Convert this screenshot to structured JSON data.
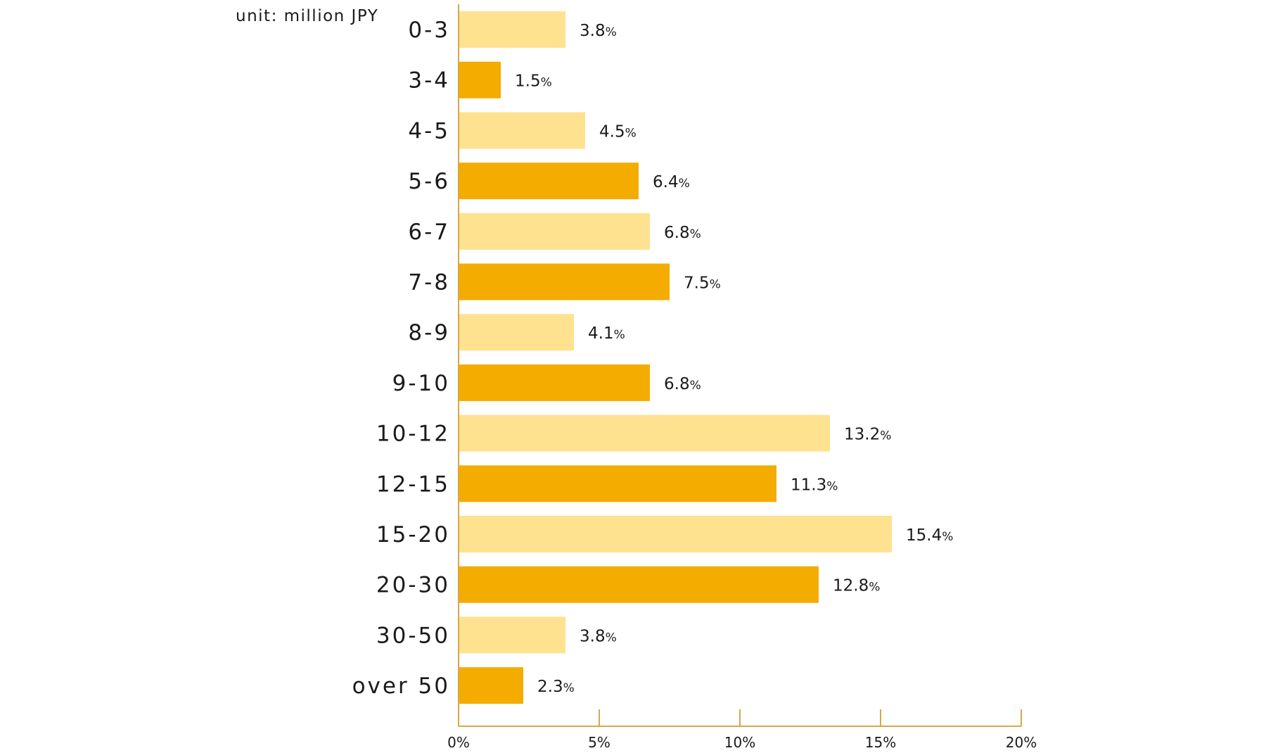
{
  "chart_data": {
    "type": "bar",
    "orientation": "horizontal",
    "unit_note": "unit: million JPY",
    "categories": [
      "0-3",
      "3-4",
      "4-5",
      "5-6",
      "6-7",
      "7-8",
      "8-9",
      "9-10",
      "10-12",
      "12-15",
      "15-20",
      "20-30",
      "30-50",
      "over 50"
    ],
    "values": [
      3.8,
      1.5,
      4.5,
      6.4,
      6.8,
      7.5,
      4.1,
      6.8,
      13.2,
      11.3,
      15.4,
      12.8,
      3.8,
      2.3
    ],
    "value_labels": [
      "3.8",
      "1.5",
      "4.5",
      "6.4",
      "6.8",
      "7.5",
      "4.1",
      "6.8",
      "13.2",
      "11.3",
      "15.4",
      "12.8",
      "3.8",
      "2.3"
    ],
    "value_suffix": "%",
    "xlim": [
      0,
      20
    ],
    "x_ticks": [
      "0%",
      "5%",
      "10%",
      "15%",
      "20%"
    ],
    "grid": false,
    "colors": {
      "light_bar": "#FEE290",
      "dark_bar": "#F4AC00",
      "axis": "#D6A84A"
    }
  }
}
